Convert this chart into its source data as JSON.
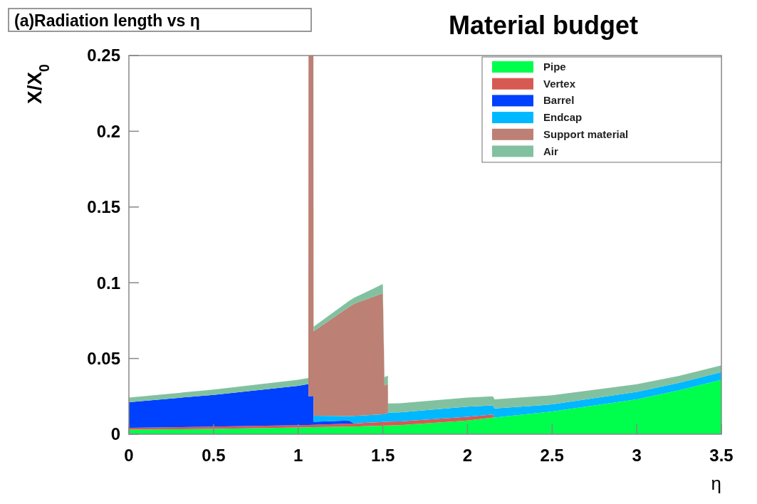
{
  "chart_data": {
    "type": "area",
    "stacked": true,
    "title": "Material budget",
    "annotations": [
      "(a)Radiation length vs η"
    ],
    "xlabel": "η",
    "ylabel": "X/X$_{0}$",
    "x": [
      0,
      0.5,
      1.0,
      1.06,
      1.061,
      1.09,
      1.091,
      1.3,
      1.33,
      1.5,
      1.51,
      1.53,
      1.531,
      1.6,
      2.0,
      2.15,
      2.16,
      2.5,
      3.0,
      3.25,
      3.5
    ],
    "series": [
      {
        "name": "Pipe",
        "color": "#00ff4c",
        "values": [
          0.003,
          0.0035,
          0.0045,
          0.0046,
          0.0046,
          0.0047,
          0.0047,
          0.005,
          0.0051,
          0.0056,
          0.0057,
          0.0057,
          0.0058,
          0.006,
          0.009,
          0.011,
          0.011,
          0.015,
          0.023,
          0.029,
          0.036
        ]
      },
      {
        "name": "Vertex",
        "color": "#d65a52",
        "values": [
          0.0012,
          0.0015,
          0.0015,
          0.0015,
          0.0015,
          0.0015,
          0.0015,
          0.002,
          0.002,
          0.0025,
          0.0025,
          0.0025,
          0.0025,
          0.0025,
          0.0025,
          0.002,
          0,
          0,
          0,
          0,
          0
        ]
      },
      {
        "name": "Barrel",
        "color": "#0040ff",
        "values": [
          0.017,
          0.021,
          0.026,
          0.027,
          0.019,
          0.019,
          0.002,
          0.002,
          0,
          0,
          0,
          0,
          0,
          0,
          0,
          0,
          0,
          0,
          0,
          0,
          0
        ]
      },
      {
        "name": "Endcap",
        "color": "#00b8ff",
        "values": [
          0,
          0,
          0,
          0,
          0,
          0,
          0.004,
          0.003,
          0.005,
          0.005,
          0.005,
          0.006,
          0.006,
          0.006,
          0.0067,
          0.006,
          0.006,
          0.0047,
          0.005,
          0.005,
          0.005
        ]
      },
      {
        "name": "Support material",
        "color": "#bc8074",
        "values": [
          0,
          0,
          0,
          0,
          0.2249,
          0.2248,
          0.0558,
          0.072,
          0.074,
          0.08,
          0.019,
          0.019,
          0,
          0,
          0,
          0,
          0,
          0,
          0,
          0,
          0
        ]
      },
      {
        "name": "Air",
        "color": "#82c1a0",
        "values": [
          0.003,
          0.0035,
          0.004,
          0.004,
          0,
          0,
          0.003,
          0.004,
          0.004,
          0.006,
          0.0055,
          0.0055,
          0.006,
          0.006,
          0.006,
          0.006,
          0.006,
          0.006,
          0.005,
          0.0045,
          0.0045
        ]
      }
    ],
    "xlim": [
      0,
      3.5
    ],
    "xticks": [
      0,
      0.5,
      1,
      1.5,
      2,
      2.5,
      3,
      3.5
    ],
    "ylim": [
      0,
      0.25
    ],
    "yticks": [
      0,
      0.05,
      0.1,
      0.15,
      0.2,
      0.25
    ],
    "legend": "top right"
  }
}
